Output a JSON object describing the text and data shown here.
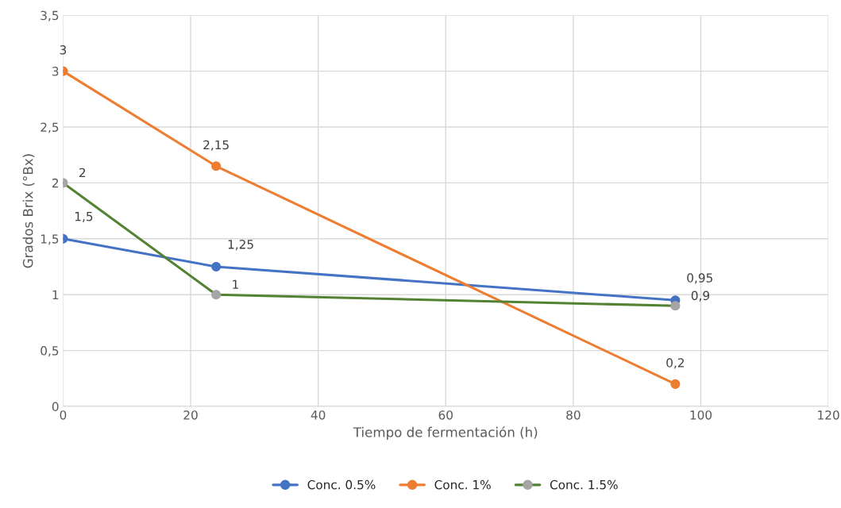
{
  "chart_data": {
    "type": "line",
    "xlabel": "Tiempo de fermentación (h)",
    "ylabel": "Grados Brix (°Bx)",
    "x": [
      0,
      24,
      96
    ],
    "series": [
      {
        "name": "Conc. 0.5%",
        "color": "#4472c4",
        "values": [
          1.5,
          1.25,
          0.95
        ],
        "value_labels": [
          "1,5",
          "1,25",
          "0,95"
        ]
      },
      {
        "name": "Conc. 1%",
        "color": "#ed7d31",
        "values": [
          3,
          2.15,
          0.2
        ],
        "value_labels": [
          "3",
          "2,15",
          "0,2"
        ]
      },
      {
        "name": "Conc. 1.5%",
        "color": "#548235",
        "colors": [
          "#a5a5a5",
          "#a5a5a5",
          "#a5a5a5"
        ],
        "values": [
          2,
          1,
          0.9
        ],
        "value_labels": [
          "2",
          "1",
          "0,9"
        ]
      }
    ],
    "xlim": [
      0,
      120
    ],
    "xticks": [
      0,
      20,
      40,
      60,
      80,
      100,
      120
    ],
    "ylim": [
      0,
      3.5
    ],
    "yticks": [
      0,
      {
        "value": 0.5,
        "label": "0,5"
      },
      1,
      {
        "value": 1.5,
        "label": "1,5"
      },
      2,
      {
        "value": 2.5,
        "label": "2,5"
      },
      3,
      {
        "value": 3.5,
        "label": "3,5"
      }
    ],
    "grid": true,
    "legend": "bottom",
    "marker": "circle",
    "line_style": "solid"
  }
}
